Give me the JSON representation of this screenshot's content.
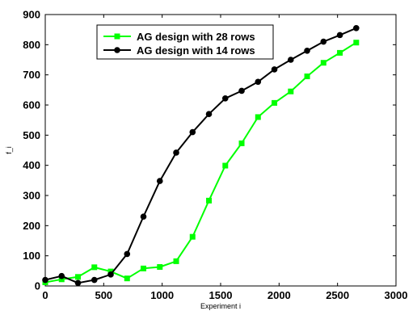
{
  "chart_data": {
    "type": "line",
    "title": "",
    "xlabel": "Experiment i",
    "ylabel": "f_i",
    "xlim": [
      0,
      3000
    ],
    "ylim": [
      0,
      900
    ],
    "xticks": [
      0,
      500,
      1000,
      1500,
      2000,
      2500,
      3000
    ],
    "yticks": [
      0,
      100,
      200,
      300,
      400,
      500,
      600,
      700,
      800,
      900
    ],
    "grid": false,
    "legend_position": "top-center",
    "series": [
      {
        "name": "AG design with 28 rows",
        "color": "#00ff00",
        "marker": "square",
        "x": [
          0,
          140,
          280,
          420,
          560,
          700,
          840,
          980,
          1120,
          1260,
          1400,
          1540,
          1680,
          1820,
          1960,
          2100,
          2240,
          2380,
          2520,
          2660
        ],
        "y": [
          12,
          22,
          30,
          62,
          48,
          25,
          58,
          63,
          82,
          163,
          283,
          399,
          473,
          560,
          607,
          645,
          695,
          740,
          773,
          807
        ]
      },
      {
        "name": "AG design with 14 rows",
        "color": "#000000",
        "marker": "circle",
        "x": [
          0,
          140,
          280,
          420,
          560,
          700,
          840,
          980,
          1120,
          1260,
          1400,
          1540,
          1680,
          1820,
          1960,
          2100,
          2240,
          2380,
          2520,
          2660
        ],
        "y": [
          20,
          33,
          10,
          20,
          38,
          106,
          230,
          348,
          442,
          510,
          570,
          622,
          647,
          677,
          718,
          750,
          780,
          810,
          832,
          855
        ]
      }
    ]
  }
}
